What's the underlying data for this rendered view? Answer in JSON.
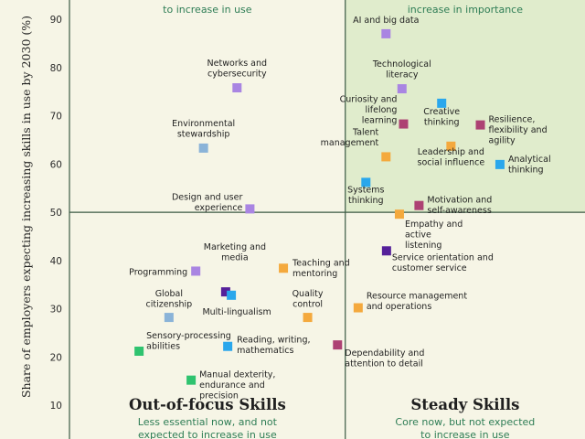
{
  "chart_data": {
    "type": "scatter",
    "ylabel": "Share of employers expecting increasing skills in use by 2030 (%)",
    "ylim": [
      3,
      94
    ],
    "yticks": [
      10,
      20,
      30,
      40,
      50,
      60,
      70,
      80,
      90
    ],
    "xlim": [
      0,
      100
    ],
    "threshold_x": 53.5,
    "threshold_y": 50,
    "quadrants": [
      {
        "name": "top-left",
        "title": "",
        "subtitle": "to increase in use"
      },
      {
        "name": "top-right",
        "title": "",
        "subtitle": "increase in importance"
      },
      {
        "name": "bottom-left",
        "title": "Out-of-focus Skills",
        "subtitle": "Less essential now, and not expected to increase in use"
      },
      {
        "name": "bottom-right",
        "title": "Steady Skills",
        "subtitle": "Core now, but not expected to increase in use"
      }
    ],
    "colors": {
      "purple": "#a985e2",
      "blue": "#2aa7ec",
      "orange": "#f4a93d",
      "crimson": "#ad4173",
      "darkpurple": "#55209a",
      "green": "#2fc36f",
      "lightblue": "#8ab3d8",
      "topright_bg": "#e0eccc",
      "divider": "#3b5a44"
    },
    "points": [
      {
        "label": "AI and big data",
        "x": 61.4,
        "y": 87.0,
        "color": "purple"
      },
      {
        "label": "Technological literacy",
        "x": 64.5,
        "y": 75.6,
        "color": "purple"
      },
      {
        "label": "Networks and cybersecurity",
        "x": 32.5,
        "y": 75.8,
        "color": "purple"
      },
      {
        "label": "Creative thinking",
        "x": 72.2,
        "y": 72.6,
        "color": "blue"
      },
      {
        "label": "Curiosity and lifelong learning",
        "x": 64.8,
        "y": 68.3,
        "color": "crimson"
      },
      {
        "label": "Resilience, flexibility and agility",
        "x": 79.7,
        "y": 68.1,
        "color": "crimson"
      },
      {
        "label": "Environmental stewardship",
        "x": 26.0,
        "y": 63.3,
        "color": "lightblue"
      },
      {
        "label": "Leadership and social influence",
        "x": 74.0,
        "y": 63.7,
        "color": "orange"
      },
      {
        "label": "Talent management",
        "x": 61.4,
        "y": 61.5,
        "color": "orange"
      },
      {
        "label": "Analytical thinking",
        "x": 83.5,
        "y": 59.9,
        "color": "blue"
      },
      {
        "label": "Systems thinking",
        "x": 57.5,
        "y": 56.2,
        "color": "blue"
      },
      {
        "label": "Design and user experience",
        "x": 35.0,
        "y": 50.7,
        "color": "purple"
      },
      {
        "label": "Motivation and self-awareness",
        "x": 67.8,
        "y": 51.4,
        "color": "crimson"
      },
      {
        "label": "Empathy and active listening",
        "x": 64.0,
        "y": 49.6,
        "color": "orange"
      },
      {
        "label": "Service orientation and customer service",
        "x": 61.5,
        "y": 42.0,
        "color": "darkpurple"
      },
      {
        "label": "Programming",
        "x": 24.5,
        "y": 37.8,
        "color": "purple"
      },
      {
        "label": "Teaching and mentoring",
        "x": 41.5,
        "y": 38.4,
        "color": "orange"
      },
      {
        "label": "Marketing and media",
        "x": 30.3,
        "y": 33.5,
        "color": "darkpurple"
      },
      {
        "label": "Multi-lingualism",
        "x": 31.4,
        "y": 32.8,
        "color": "blue"
      },
      {
        "label": "Global citizenship",
        "x": 19.3,
        "y": 28.2,
        "color": "lightblue"
      },
      {
        "label": "Quality control",
        "x": 46.2,
        "y": 28.2,
        "color": "orange"
      },
      {
        "label": "Resource management and operations",
        "x": 56.0,
        "y": 30.2,
        "color": "orange"
      },
      {
        "label": "Reading, writing, mathematics",
        "x": 30.7,
        "y": 22.2,
        "color": "blue"
      },
      {
        "label": "Sensory-processing abilities",
        "x": 13.5,
        "y": 21.2,
        "color": "green"
      },
      {
        "label": "Dependability and attention to detail",
        "x": 52.0,
        "y": 22.5,
        "color": "crimson"
      },
      {
        "label": "Manual dexterity, endurance and precision",
        "x": 23.6,
        "y": 15.2,
        "color": "green"
      }
    ]
  }
}
